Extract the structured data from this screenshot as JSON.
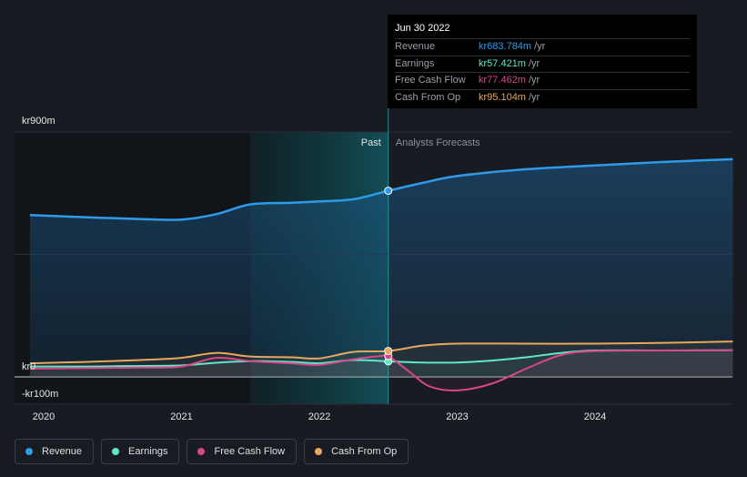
{
  "chart_data": {
    "type": "line",
    "x_ticks": [
      "2020",
      "2021",
      "2022",
      "2023",
      "2024"
    ],
    "y_labels": [
      "kr900m",
      "kr0",
      "-kr100m"
    ],
    "ylim": [
      -100,
      900
    ],
    "xlim": [
      2019.9,
      2025.0
    ],
    "divider_x": 2022.5,
    "highlight_start": 2021.5,
    "past_label": "Past",
    "forecast_label": "Analysts Forecasts",
    "series": [
      {
        "name": "Revenue",
        "color": "#2f9be8",
        "x": [
          2019.9,
          2020.3,
          2020.7,
          2021.0,
          2021.25,
          2021.5,
          2021.8,
          2022.0,
          2022.25,
          2022.5,
          2022.75,
          2023.0,
          2023.5,
          2024.0,
          2024.5,
          2025.0
        ],
        "y": [
          595,
          587,
          580,
          578,
          598,
          634,
          640,
          645,
          653,
          684,
          713,
          738,
          763,
          777,
          790,
          800
        ]
      },
      {
        "name": "Earnings",
        "color": "#5ee8c9",
        "x": [
          2019.9,
          2020.3,
          2020.7,
          2021.0,
          2021.25,
          2021.5,
          2021.8,
          2022.0,
          2022.25,
          2022.5,
          2022.75,
          2023.0,
          2023.25,
          2023.5,
          2023.75,
          2024.0,
          2024.5,
          2025.0
        ],
        "y": [
          38,
          38,
          40,
          42,
          52,
          58,
          55,
          50,
          62,
          57,
          53,
          53,
          60,
          72,
          88,
          97,
          97,
          98
        ]
      },
      {
        "name": "Free Cash Flow",
        "color": "#d9468a",
        "x": [
          2019.9,
          2020.3,
          2020.7,
          2021.0,
          2021.25,
          2021.5,
          2021.8,
          2022.0,
          2022.25,
          2022.45,
          2022.5,
          2022.65,
          2022.8,
          2023.0,
          2023.25,
          2023.5,
          2023.75,
          2024.0,
          2024.5,
          2025.0
        ],
        "y": [
          30,
          32,
          34,
          38,
          70,
          58,
          50,
          44,
          65,
          77,
          77,
          20,
          -35,
          -50,
          -25,
          30,
          80,
          95,
          97,
          98
        ]
      },
      {
        "name": "Cash From Op",
        "color": "#e8a85a",
        "x": [
          2019.9,
          2020.3,
          2020.7,
          2021.0,
          2021.25,
          2021.5,
          2021.8,
          2022.0,
          2022.25,
          2022.5,
          2022.75,
          2023.0,
          2023.5,
          2024.0,
          2024.5,
          2025.0
        ],
        "y": [
          50,
          55,
          62,
          70,
          88,
          75,
          72,
          68,
          92,
          95,
          115,
          122,
          122,
          122,
          125,
          130
        ]
      }
    ],
    "tooltip": {
      "date": "Jun 30 2022",
      "rows": [
        {
          "label": "Revenue",
          "value": "kr683.784m",
          "unit": "/yr",
          "color": "#2f9be8"
        },
        {
          "label": "Earnings",
          "value": "kr57.421m",
          "unit": "/yr",
          "color": "#5ee8c9"
        },
        {
          "label": "Free Cash Flow",
          "value": "kr77.462m",
          "unit": "/yr",
          "color": "#d9468a"
        },
        {
          "label": "Cash From Op",
          "value": "kr95.104m",
          "unit": "/yr",
          "color": "#e8a85a"
        }
      ]
    }
  },
  "legend": [
    {
      "label": "Revenue",
      "color": "#2f9be8"
    },
    {
      "label": "Earnings",
      "color": "#5ee8c9"
    },
    {
      "label": "Free Cash Flow",
      "color": "#d9468a"
    },
    {
      "label": "Cash From Op",
      "color": "#e8a85a"
    }
  ]
}
